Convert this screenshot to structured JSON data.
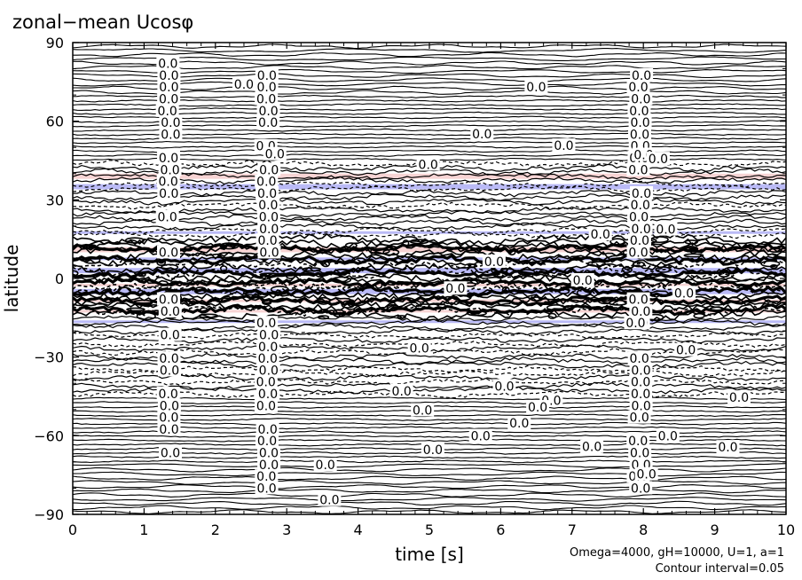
{
  "chart_data": {
    "type": "contour",
    "title": "zonal−mean Ucosφ",
    "xlabel": "time [s]",
    "ylabel": "latitude",
    "xlim": [
      0,
      10
    ],
    "ylim": [
      -90,
      90
    ],
    "x_ticks": [
      0,
      1,
      2,
      3,
      4,
      5,
      6,
      7,
      8,
      9,
      10
    ],
    "y_ticks": [
      90,
      60,
      30,
      0,
      -30,
      -60,
      -90
    ],
    "y_tick_labels": [
      "90",
      "60",
      "30",
      "0",
      "−30",
      "−60",
      "−90"
    ],
    "contour_label": "0.0",
    "contour_interval": 0.05,
    "note_line1": "Omega=4000, gH=10000, U=1, a=1",
    "note_line2": "Contour interval=0.05",
    "colors": {
      "positive_shade": "#f2b8b8",
      "negative_shade": "#8c8cf0",
      "line": "#000000"
    }
  }
}
